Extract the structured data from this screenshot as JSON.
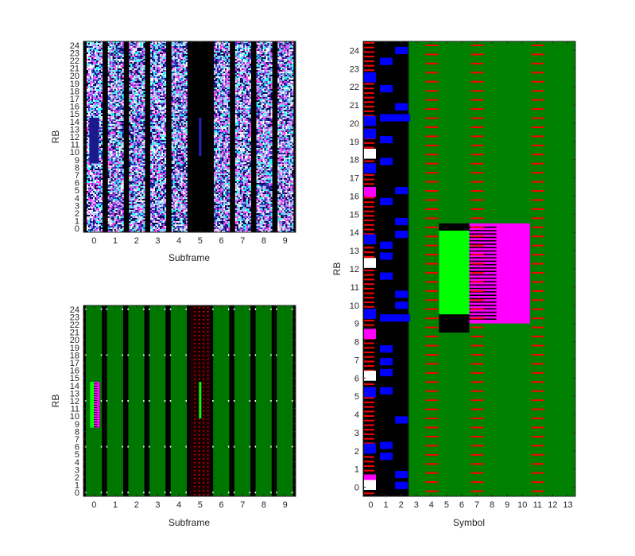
{
  "chart_data": [
    {
      "id": "top-left",
      "type": "heatmap",
      "xlabel": "Subframe",
      "ylabel": "RB",
      "x_ticks": [
        0,
        1,
        2,
        3,
        4,
        5,
        6,
        7,
        8,
        9
      ],
      "y_ticks": [
        0,
        1,
        2,
        3,
        4,
        5,
        6,
        7,
        8,
        9,
        10,
        11,
        12,
        13,
        14,
        15,
        16,
        17,
        18,
        19,
        20,
        21,
        22,
        23,
        24
      ],
      "xlim": [
        -0.5,
        9.5
      ],
      "ylim": [
        -0.5,
        24.5
      ],
      "description_values": {
        "noise_subframes": [
          0,
          1,
          2,
          3,
          4,
          6,
          7,
          8,
          9
        ],
        "empty_subframe": 5,
        "blocks": [
          {
            "subframe": 0,
            "rb_from": 9,
            "rb_to": 14,
            "color": "#1a1a8c"
          },
          {
            "subframe": 5,
            "rb_from": 10,
            "rb_to": 14,
            "color": "#2222bb"
          }
        ]
      },
      "colors": {
        "background": "#000000",
        "noise": [
          "#3a3ad6",
          "#c6c6ff",
          "#ff44ff",
          "#33ffff",
          "#ffffff",
          "#0b0b5a"
        ]
      }
    },
    {
      "id": "bottom-left",
      "type": "heatmap",
      "xlabel": "Subframe",
      "ylabel": "RB",
      "x_ticks": [
        0,
        1,
        2,
        3,
        4,
        5,
        6,
        7,
        8,
        9
      ],
      "y_ticks": [
        0,
        1,
        2,
        3,
        4,
        5,
        6,
        7,
        8,
        9,
        10,
        11,
        12,
        13,
        14,
        15,
        16,
        17,
        18,
        19,
        20,
        21,
        22,
        23,
        24
      ],
      "xlim": [
        -0.5,
        9.5
      ],
      "ylim": [
        -0.5,
        24.5
      ],
      "description_values": {
        "grid_subframes": [
          0,
          1,
          2,
          3,
          4,
          6,
          7,
          8,
          9
        ],
        "sparse_subframe": 5,
        "blocks": [
          {
            "subframe": 0,
            "rb_from": 9,
            "rb_to": 14,
            "color": "#00ff00"
          },
          {
            "subframe": 0,
            "rb_from": 9,
            "rb_to": 14,
            "color": "#ff00ff",
            "offset": "right"
          },
          {
            "subframe": 5,
            "rb_from": 10,
            "rb_to": 14,
            "color": "#00ff00"
          }
        ]
      },
      "colors": {
        "background": "#007700",
        "gap": "#000000",
        "ref": "#ff0000",
        "marker": "#ffffff"
      }
    },
    {
      "id": "right",
      "type": "heatmap",
      "xlabel": "Symbol",
      "ylabel": "RB",
      "x_ticks": [
        0,
        1,
        2,
        3,
        4,
        5,
        6,
        7,
        8,
        9,
        10,
        11,
        12,
        13
      ],
      "y_ticks": [
        0,
        1,
        2,
        3,
        4,
        5,
        6,
        7,
        8,
        9,
        10,
        11,
        12,
        13,
        14,
        15,
        16,
        17,
        18,
        19,
        20,
        21,
        22,
        23,
        24
      ],
      "xlim": [
        -0.5,
        13.5
      ],
      "ylim": [
        -0.5,
        24.5
      ],
      "control_region_symbols": [
        0,
        1,
        2
      ],
      "ref_symbols": [
        4,
        7,
        11
      ],
      "blocks": [
        {
          "symbol_from": 4.5,
          "symbol_to": 6.5,
          "rb_from": 8.5,
          "rb_to": 14.5,
          "color": "#000000"
        },
        {
          "symbol_from": 4.5,
          "symbol_to": 6.5,
          "rb_from": 9.5,
          "rb_to": 14.1,
          "color": "#00ff00"
        },
        {
          "symbol_from": 6.5,
          "symbol_to": 10.5,
          "rb_from": 9.0,
          "rb_to": 14.5,
          "color": "#ff00ff"
        }
      ],
      "colors": {
        "data": "#008000",
        "control": "#000000",
        "ref": "#ff0000",
        "pdcch": "#0000ff",
        "hi": "#ff00ff",
        "sync": "#00ff00"
      }
    }
  ]
}
